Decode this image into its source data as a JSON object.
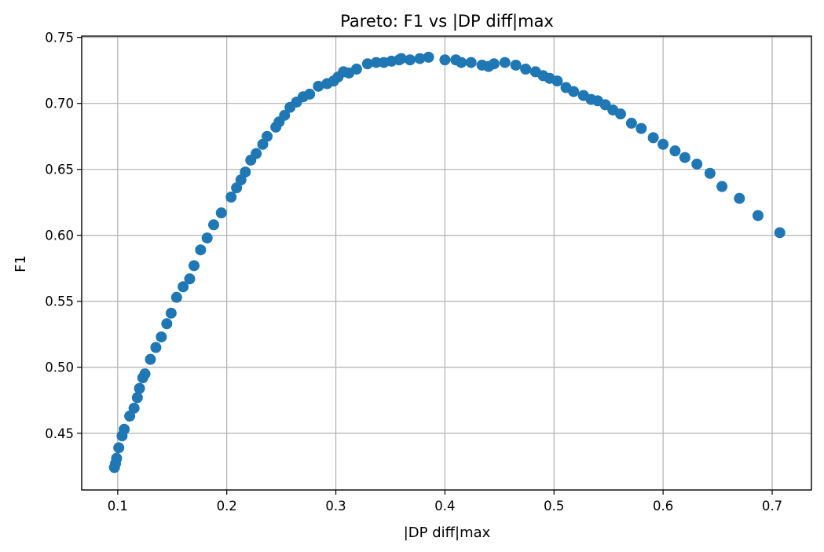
{
  "chart_data": {
    "type": "scatter",
    "title": "Pareto: F1 vs |DP diff|max",
    "xlabel": "|DP diff|max",
    "ylabel": "F1",
    "xlim": [
      0.067,
      0.736
    ],
    "ylim": [
      0.407,
      0.751
    ],
    "xticks": [
      0.1,
      0.2,
      0.3,
      0.4,
      0.5,
      0.6,
      0.7
    ],
    "yticks": [
      0.45,
      0.5,
      0.55,
      0.6,
      0.65,
      0.7,
      0.75
    ],
    "xtick_labels": [
      "0.1",
      "0.2",
      "0.3",
      "0.4",
      "0.5",
      "0.6",
      "0.7"
    ],
    "ytick_labels": [
      "0.45",
      "0.50",
      "0.55",
      "0.60",
      "0.65",
      "0.70",
      "0.75"
    ],
    "grid": true,
    "marker_color": "#1f77b4",
    "points": [
      [
        0.097,
        0.424
      ],
      [
        0.098,
        0.427
      ],
      [
        0.099,
        0.431
      ],
      [
        0.101,
        0.439
      ],
      [
        0.104,
        0.448
      ],
      [
        0.106,
        0.453
      ],
      [
        0.111,
        0.463
      ],
      [
        0.115,
        0.469
      ],
      [
        0.118,
        0.477
      ],
      [
        0.12,
        0.484
      ],
      [
        0.123,
        0.492
      ],
      [
        0.125,
        0.495
      ],
      [
        0.13,
        0.506
      ],
      [
        0.135,
        0.515
      ],
      [
        0.14,
        0.523
      ],
      [
        0.145,
        0.533
      ],
      [
        0.149,
        0.541
      ],
      [
        0.154,
        0.553
      ],
      [
        0.16,
        0.561
      ],
      [
        0.166,
        0.567
      ],
      [
        0.17,
        0.577
      ],
      [
        0.176,
        0.589
      ],
      [
        0.182,
        0.598
      ],
      [
        0.188,
        0.608
      ],
      [
        0.195,
        0.617
      ],
      [
        0.204,
        0.629
      ],
      [
        0.209,
        0.636
      ],
      [
        0.213,
        0.642
      ],
      [
        0.217,
        0.648
      ],
      [
        0.222,
        0.657
      ],
      [
        0.227,
        0.662
      ],
      [
        0.233,
        0.669
      ],
      [
        0.237,
        0.675
      ],
      [
        0.245,
        0.682
      ],
      [
        0.248,
        0.686
      ],
      [
        0.253,
        0.691
      ],
      [
        0.258,
        0.697
      ],
      [
        0.264,
        0.701
      ],
      [
        0.27,
        0.705
      ],
      [
        0.276,
        0.707
      ],
      [
        0.284,
        0.713
      ],
      [
        0.292,
        0.715
      ],
      [
        0.298,
        0.717
      ],
      [
        0.302,
        0.72
      ],
      [
        0.307,
        0.724
      ],
      [
        0.312,
        0.723
      ],
      [
        0.319,
        0.726
      ],
      [
        0.329,
        0.73
      ],
      [
        0.337,
        0.731
      ],
      [
        0.344,
        0.731
      ],
      [
        0.351,
        0.732
      ],
      [
        0.358,
        0.733
      ],
      [
        0.36,
        0.734
      ],
      [
        0.368,
        0.733
      ],
      [
        0.377,
        0.734
      ],
      [
        0.385,
        0.735
      ],
      [
        0.4,
        0.733
      ],
      [
        0.41,
        0.733
      ],
      [
        0.415,
        0.731
      ],
      [
        0.424,
        0.731
      ],
      [
        0.434,
        0.729
      ],
      [
        0.44,
        0.728
      ],
      [
        0.445,
        0.73
      ],
      [
        0.455,
        0.731
      ],
      [
        0.465,
        0.729
      ],
      [
        0.474,
        0.726
      ],
      [
        0.483,
        0.724
      ],
      [
        0.49,
        0.721
      ],
      [
        0.496,
        0.719
      ],
      [
        0.503,
        0.717
      ],
      [
        0.511,
        0.712
      ],
      [
        0.518,
        0.709
      ],
      [
        0.527,
        0.706
      ],
      [
        0.534,
        0.703
      ],
      [
        0.54,
        0.702
      ],
      [
        0.547,
        0.699
      ],
      [
        0.554,
        0.695
      ],
      [
        0.561,
        0.692
      ],
      [
        0.571,
        0.685
      ],
      [
        0.58,
        0.681
      ],
      [
        0.591,
        0.674
      ],
      [
        0.6,
        0.669
      ],
      [
        0.611,
        0.664
      ],
      [
        0.62,
        0.659
      ],
      [
        0.631,
        0.654
      ],
      [
        0.643,
        0.647
      ],
      [
        0.654,
        0.637
      ],
      [
        0.67,
        0.628
      ],
      [
        0.687,
        0.615
      ],
      [
        0.707,
        0.602
      ]
    ]
  }
}
